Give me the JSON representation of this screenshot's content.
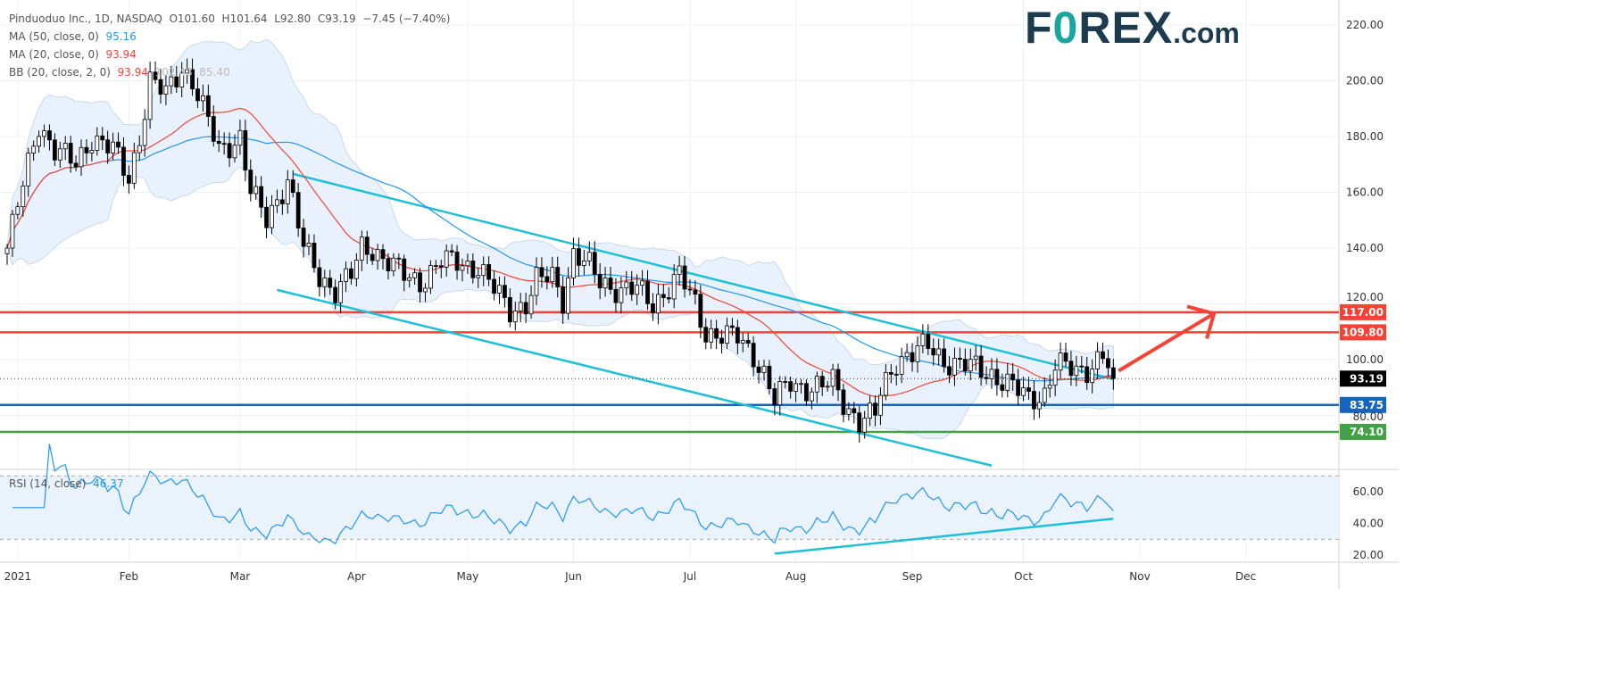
{
  "header": {
    "symbol": "Pinduoduo Inc., 1D, NASDAQ",
    "open": "O101.60",
    "high": "H101.64",
    "low": "L92.80",
    "close": "C93.19",
    "change": "−7.45 (−7.40%)",
    "ma50_label": "MA (50, close, 0)",
    "ma50_value": "95.16",
    "ma20_label": "MA (20, close, 0)",
    "ma20_value": "93.94",
    "bb_label": "BB (20, close, 2, 0)",
    "bb_basis": "93.94",
    "bb_upper": "102.48",
    "bb_lower": "85.40",
    "rsi_label": "RSI (14, close)",
    "rsi_value": "46.37"
  },
  "logo": {
    "text1": "F",
    "text2": "REX",
    "text3": ".com"
  },
  "colors": {
    "up": "#ffffff",
    "down": "#000000",
    "ma50": "#2196f3",
    "ma20": "#f44336",
    "bb_fill": "#e3effb",
    "channel": "#1ec0d8",
    "resistance": "#f44336",
    "support_blue": "#1565c0",
    "support_green": "#43a047",
    "rsi": "#2196f3"
  },
  "chart_data": {
    "type": "candlestick",
    "x_unit": "trading day index since 2021-01-04",
    "close_keypoints": [
      [
        0,
        140
      ],
      [
        6,
        185
      ],
      [
        9,
        175
      ],
      [
        13,
        170
      ],
      [
        16,
        180
      ],
      [
        20,
        175
      ],
      [
        23,
        165
      ],
      [
        25,
        180
      ],
      [
        27,
        200
      ],
      [
        30,
        195
      ],
      [
        33,
        205
      ],
      [
        35,
        200
      ],
      [
        38,
        185
      ],
      [
        40,
        175
      ],
      [
        44,
        180
      ],
      [
        46,
        160
      ],
      [
        49,
        150
      ],
      [
        53,
        165
      ],
      [
        56,
        140
      ],
      [
        59,
        130
      ],
      [
        62,
        125
      ],
      [
        65,
        130
      ],
      [
        67,
        140
      ],
      [
        69,
        140
      ],
      [
        72,
        135
      ],
      [
        75,
        130
      ],
      [
        78,
        128
      ],
      [
        82,
        135
      ],
      [
        85,
        135
      ],
      [
        89,
        133
      ],
      [
        92,
        125
      ],
      [
        95,
        118
      ],
      [
        98,
        120
      ],
      [
        100,
        128
      ],
      [
        103,
        130
      ],
      [
        105,
        122
      ],
      [
        107,
        138
      ],
      [
        110,
        133
      ],
      [
        112,
        128
      ],
      [
        116,
        125
      ],
      [
        119,
        125
      ],
      [
        122,
        120
      ],
      [
        126,
        128
      ],
      [
        127,
        130
      ],
      [
        130,
        120
      ],
      [
        132,
        110
      ],
      [
        136,
        108
      ],
      [
        138,
        108
      ],
      [
        141,
        102
      ],
      [
        143,
        95
      ],
      [
        145,
        85
      ],
      [
        148,
        92
      ],
      [
        151,
        90
      ],
      [
        154,
        90
      ],
      [
        156,
        92
      ],
      [
        158,
        85
      ],
      [
        161,
        78
      ],
      [
        164,
        80
      ],
      [
        165,
        88
      ],
      [
        168,
        100
      ],
      [
        171,
        102
      ],
      [
        174,
        105
      ],
      [
        177,
        100
      ],
      [
        180,
        98
      ],
      [
        183,
        97
      ],
      [
        186,
        95
      ],
      [
        190,
        90
      ],
      [
        193,
        86
      ],
      [
        196,
        88
      ],
      [
        198,
        98
      ],
      [
        202,
        96
      ],
      [
        204,
        97
      ],
      [
        207,
        101.6
      ],
      [
        209,
        93.19
      ]
    ],
    "y_ticks": [
      220,
      200,
      180,
      160,
      140,
      120,
      100,
      80
    ],
    "ylim": [
      64,
      228
    ],
    "x_ticks": [
      {
        "label": "2021",
        "day": 2
      },
      {
        "label": "Feb",
        "day": 23
      },
      {
        "label": "Mar",
        "day": 44
      },
      {
        "label": "Apr",
        "day": 66
      },
      {
        "label": "May",
        "day": 87
      },
      {
        "label": "Jun",
        "day": 107
      },
      {
        "label": "Jul",
        "day": 129
      },
      {
        "label": "Aug",
        "day": 149
      },
      {
        "label": "Sep",
        "day": 171
      },
      {
        "label": "Oct",
        "day": 192
      },
      {
        "label": "Nov",
        "day": 214
      },
      {
        "label": "Dec",
        "day": 234
      }
    ],
    "levels": [
      {
        "value": 117.0,
        "label": "117.00",
        "color": "#f44336"
      },
      {
        "value": 109.8,
        "label": "109.80",
        "color": "#f44336"
      },
      {
        "value": 83.75,
        "label": "83.75",
        "color": "#1565c0"
      },
      {
        "value": 74.1,
        "label": "74.10",
        "color": "#43a047"
      }
    ],
    "last_price": {
      "value": 93.19,
      "label": "93.19"
    },
    "trendlines": [
      {
        "from": [
          54,
          166.6
        ],
        "to": [
          209,
          93
        ],
        "color": "#1ec0d8"
      },
      {
        "from": [
          51,
          125
        ],
        "to": [
          186,
          62
        ]
      }
    ],
    "arrow": {
      "from": [
        210,
        96
      ],
      "to": [
        228,
        116.5
      ]
    },
    "rsi": {
      "y_ticks": [
        60,
        40,
        20
      ],
      "bands": [
        70,
        30
      ],
      "trendline": {
        "from": [
          145,
          21
        ],
        "to": [
          209,
          43
        ]
      }
    }
  }
}
